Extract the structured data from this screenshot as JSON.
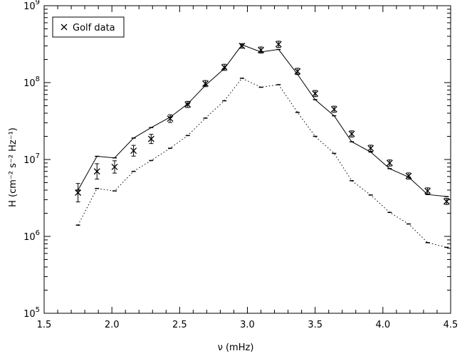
{
  "chart_data": {
    "type": "line",
    "xlabel": "ν (mHz)",
    "ylabel": "H (cm⁻² s⁻² Hz⁻¹)",
    "xlim": [
      1.5,
      4.5
    ],
    "ylim": [
      100000,
      1000000000
    ],
    "y_scale": "log",
    "x_ticks": [
      "1.5",
      "2.0",
      "2.5",
      "3.0",
      "3.5",
      "4.0",
      "4.5"
    ],
    "y_ticks": [
      {
        "value": 100000,
        "base": "10",
        "exp": "5"
      },
      {
        "value": 1000000,
        "base": "10",
        "exp": "6"
      },
      {
        "value": 10000000,
        "base": "10",
        "exp": "7"
      },
      {
        "value": 100000000,
        "base": "10",
        "exp": "8"
      },
      {
        "value": 1000000000,
        "base": "10",
        "exp": "9"
      }
    ],
    "legend": {
      "position": "top-left",
      "entries": [
        "Golf data"
      ]
    },
    "grid": false,
    "series": [
      {
        "name": "Golf data",
        "style": "x-markers-with-errorbars",
        "x": [
          1.75,
          1.89,
          2.02,
          2.16,
          2.29,
          2.43,
          2.56,
          2.69,
          2.83,
          2.96,
          3.1,
          3.23,
          3.37,
          3.5,
          3.64,
          3.77,
          3.91,
          4.05,
          4.19,
          4.33,
          4.47
        ],
        "y": [
          3700000.0,
          7000000.0,
          8000000.0,
          13000000.0,
          18500000.0,
          34000000.0,
          52000000.0,
          97000000.0,
          158000000.0,
          300000000.0,
          265000000.0,
          315000000.0,
          140000000.0,
          72000000.0,
          45000000.0,
          21500000.0,
          14000000.0,
          9000000.0,
          6100000.0,
          3900000.0,
          2850000.0
        ],
        "y_err": [
          0.12,
          0.1,
          0.08,
          0.07,
          0.06,
          0.05,
          0.04,
          0.04,
          0.04,
          0.03,
          0.04,
          0.04,
          0.04,
          0.04,
          0.04,
          0.04,
          0.04,
          0.04,
          0.04,
          0.04,
          0.04
        ]
      },
      {
        "style": "solid-line",
        "x": [
          1.75,
          1.89,
          2.02,
          2.16,
          2.29,
          2.43,
          2.56,
          2.69,
          2.83,
          2.96,
          3.1,
          3.23,
          3.37,
          3.5,
          3.64,
          3.77,
          3.91,
          4.05,
          4.19,
          4.33,
          4.47
        ],
        "y": [
          4000000.0,
          11000000.0,
          10500000.0,
          19000000.0,
          26000000.0,
          35500000.0,
          53000000.0,
          92000000.0,
          152000000.0,
          310000000.0,
          250000000.0,
          270000000.0,
          128000000.0,
          60000000.0,
          37000000.0,
          17000000.0,
          12500000.0,
          7600000.0,
          5900000.0,
          3500000.0,
          3300000.0
        ]
      },
      {
        "style": "dotted-line",
        "x": [
          1.75,
          1.89,
          2.02,
          2.16,
          2.29,
          2.43,
          2.56,
          2.69,
          2.83,
          2.96,
          3.1,
          3.23,
          3.37,
          3.5,
          3.64,
          3.77,
          3.91,
          4.05,
          4.19,
          4.33,
          4.47
        ],
        "y": [
          1400000.0,
          4200000.0,
          3900000.0,
          7000000.0,
          9700000.0,
          14000000.0,
          20500000.0,
          34500000.0,
          58000000.0,
          114000000.0,
          87000000.0,
          94000000.0,
          41000000.0,
          20000000.0,
          12000000.0,
          5300000.0,
          3450000.0,
          2050000.0,
          1450000.0,
          830000.0,
          720000.0
        ]
      }
    ]
  }
}
